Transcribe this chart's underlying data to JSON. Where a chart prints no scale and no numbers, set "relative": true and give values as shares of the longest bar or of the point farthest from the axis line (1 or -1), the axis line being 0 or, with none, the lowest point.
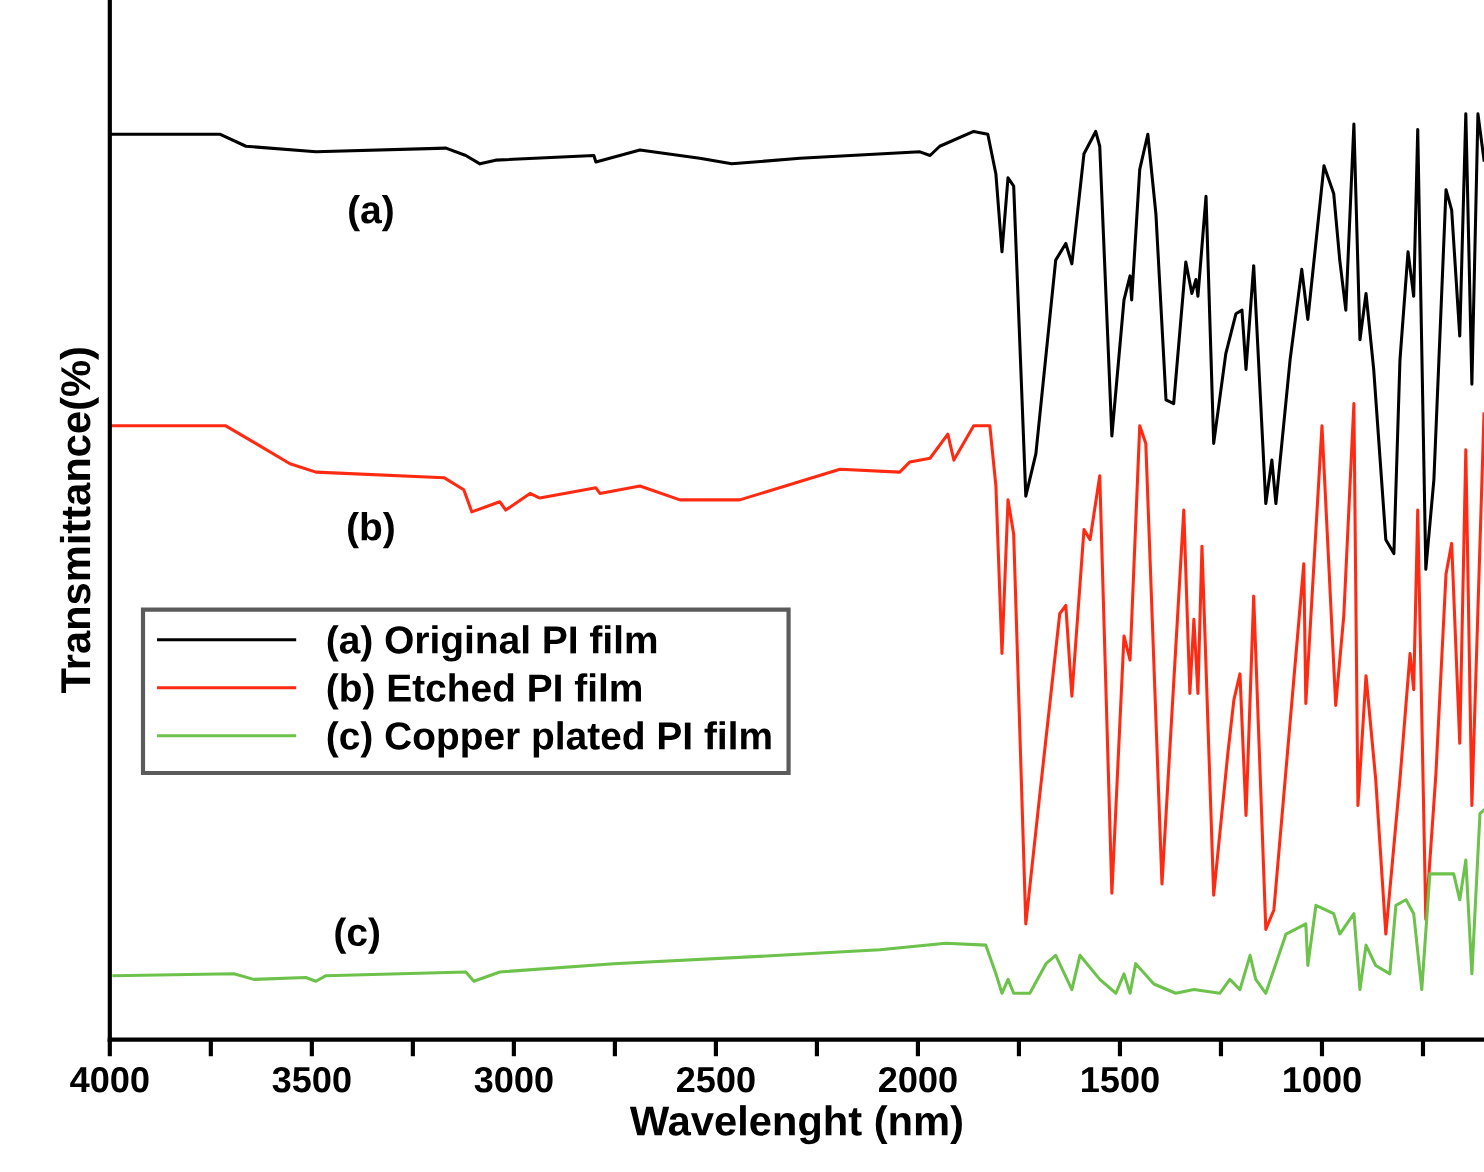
{
  "chart_data": {
    "type": "line",
    "relative": true,
    "xlabel": "Wavelenght (nm)",
    "ylabel": "Transmittance(%)",
    "xlim": [
      4000,
      599
    ],
    "xticks": [
      4000,
      {
        "value": 3750,
        "label": null
      },
      3500,
      {
        "value": 3250,
        "label": null
      },
      3000,
      {
        "value": 2750,
        "label": null
      },
      2500,
      {
        "value": 2250,
        "label": null
      },
      2000,
      {
        "value": 1750,
        "label": null
      },
      1500,
      {
        "value": 1250,
        "label": null
      },
      1000,
      {
        "value": 750,
        "label": null
      }
    ],
    "legend": "left",
    "grid": false,
    "marker": "none",
    "line_style": "solid",
    "annotations": [
      "(a)",
      "(b)",
      "(c)"
    ],
    "series": [
      {
        "name": "(a) Original PI film",
        "color": "#000000",
        "x": [
          4000,
          3728,
          3663,
          3490,
          3168,
          3119,
          3084,
          3045,
          2802,
          2797,
          2688,
          2540,
          2461,
          2292,
          1995,
          1970,
          1946,
          1862,
          1827,
          1807,
          1792,
          1777,
          1763,
          1733,
          1708,
          1659,
          1634,
          1619,
          1589,
          1560,
          1550,
          1520,
          1490,
          1475,
          1471,
          1451,
          1431,
          1411,
          1386,
          1367,
          1337,
          1322,
          1312,
          1307,
          1287,
          1268,
          1238,
          1213,
          1198,
          1188,
          1169,
          1139,
          1124,
          1114,
          1079,
          1050,
          1035,
          995,
          971,
          956,
          941,
          921,
          906,
          891,
          872,
          842,
          822,
          807,
          787,
          773,
          763,
          743,
          723,
          693,
          679,
          659,
          644,
          629,
          614,
          599
        ],
        "values": [
          0.978,
          0.978,
          0.965,
          0.959,
          0.963,
          0.955,
          0.946,
          0.95,
          0.955,
          0.948,
          0.961,
          0.952,
          0.946,
          0.952,
          0.959,
          0.955,
          0.965,
          0.981,
          0.978,
          0.935,
          0.851,
          0.931,
          0.922,
          0.587,
          0.633,
          0.842,
          0.86,
          0.838,
          0.957,
          0.981,
          0.965,
          0.652,
          0.799,
          0.825,
          0.799,
          0.94,
          0.978,
          0.892,
          0.691,
          0.687,
          0.84,
          0.806,
          0.821,
          0.803,
          0.911,
          0.644,
          0.741,
          0.784,
          0.788,
          0.724,
          0.836,
          0.579,
          0.626,
          0.579,
          0.734,
          0.832,
          0.778,
          0.944,
          0.914,
          0.842,
          0.788,
          0.989,
          0.756,
          0.806,
          0.724,
          0.54,
          0.525,
          0.734,
          0.851,
          0.803,
          0.983,
          0.508,
          0.605,
          0.918,
          0.896,
          0.76,
          1.0,
          0.708,
          1.0,
          0.95
        ]
      },
      {
        "name": "(b) Etched PI film",
        "color": "#ff2a12",
        "x": [
          4000,
          3713,
          3639,
          3554,
          3490,
          3173,
          3124,
          3104,
          3035,
          3020,
          2960,
          2936,
          2797,
          2787,
          2688,
          2589,
          2441,
          2193,
          2045,
          2020,
          1970,
          1926,
          1911,
          1862,
          1822,
          1807,
          1792,
          1777,
          1763,
          1733,
          1698,
          1649,
          1634,
          1619,
          1589,
          1574,
          1550,
          1520,
          1490,
          1475,
          1451,
          1436,
          1396,
          1342,
          1327,
          1317,
          1307,
          1297,
          1268,
          1233,
          1218,
          1203,
          1188,
          1169,
          1139,
          1119,
          1045,
          1040,
          1000,
          966,
          946,
          921,
          911,
          891,
          867,
          842,
          807,
          782,
          773,
          763,
          743,
          718,
          693,
          679,
          659,
          644,
          629,
          599
        ],
        "values": [
          0.663,
          0.663,
          0.644,
          0.622,
          0.613,
          0.607,
          0.594,
          0.57,
          0.581,
          0.572,
          0.59,
          0.585,
          0.596,
          0.59,
          0.598,
          0.583,
          0.583,
          0.616,
          0.613,
          0.624,
          0.628,
          0.654,
          0.626,
          0.663,
          0.663,
          0.598,
          0.417,
          0.583,
          0.546,
          0.125,
          0.266,
          0.46,
          0.469,
          0.371,
          0.551,
          0.54,
          0.609,
          0.158,
          0.436,
          0.41,
          0.663,
          0.644,
          0.168,
          0.572,
          0.374,
          0.454,
          0.374,
          0.533,
          0.156,
          0.309,
          0.367,
          0.395,
          0.242,
          0.479,
          0.119,
          0.14,
          0.514,
          0.363,
          0.663,
          0.361,
          0.458,
          0.687,
          0.253,
          0.393,
          0.281,
          0.114,
          0.281,
          0.417,
          0.378,
          0.572,
          0.13,
          0.287,
          0.503,
          0.536,
          0.32,
          0.637,
          0.253,
          0.676
        ]
      },
      {
        "name": "(c) Copper plated PI film",
        "color": "#6cc24a",
        "x": [
          3990,
          3693,
          3644,
          3515,
          3490,
          3465,
          3119,
          3099,
          3035,
          2753,
          2342,
          2094,
          1931,
          1832,
          1807,
          1792,
          1777,
          1763,
          1723,
          1683,
          1659,
          1619,
          1599,
          1550,
          1510,
          1490,
          1475,
          1461,
          1416,
          1362,
          1317,
          1253,
          1228,
          1203,
          1178,
          1164,
          1139,
          1089,
          1040,
          1035,
          1015,
          971,
          956,
          921,
          906,
          891,
          867,
          832,
          817,
          792,
          773,
          753,
          733,
          674,
          659,
          644,
          629,
          609,
          599
        ],
        "values": [
          0.069,
          0.071,
          0.065,
          0.067,
          0.063,
          0.069,
          0.073,
          0.063,
          0.073,
          0.082,
          0.091,
          0.097,
          0.104,
          0.102,
          0.071,
          0.05,
          0.065,
          0.05,
          0.05,
          0.082,
          0.091,
          0.054,
          0.091,
          0.065,
          0.05,
          0.071,
          0.05,
          0.082,
          0.06,
          0.05,
          0.054,
          0.05,
          0.065,
          0.054,
          0.091,
          0.065,
          0.05,
          0.114,
          0.125,
          0.08,
          0.145,
          0.136,
          0.114,
          0.136,
          0.054,
          0.102,
          0.08,
          0.071,
          0.145,
          0.151,
          0.136,
          0.054,
          0.179,
          0.179,
          0.151,
          0.194,
          0.071,
          0.244,
          0.248
        ]
      }
    ]
  }
}
